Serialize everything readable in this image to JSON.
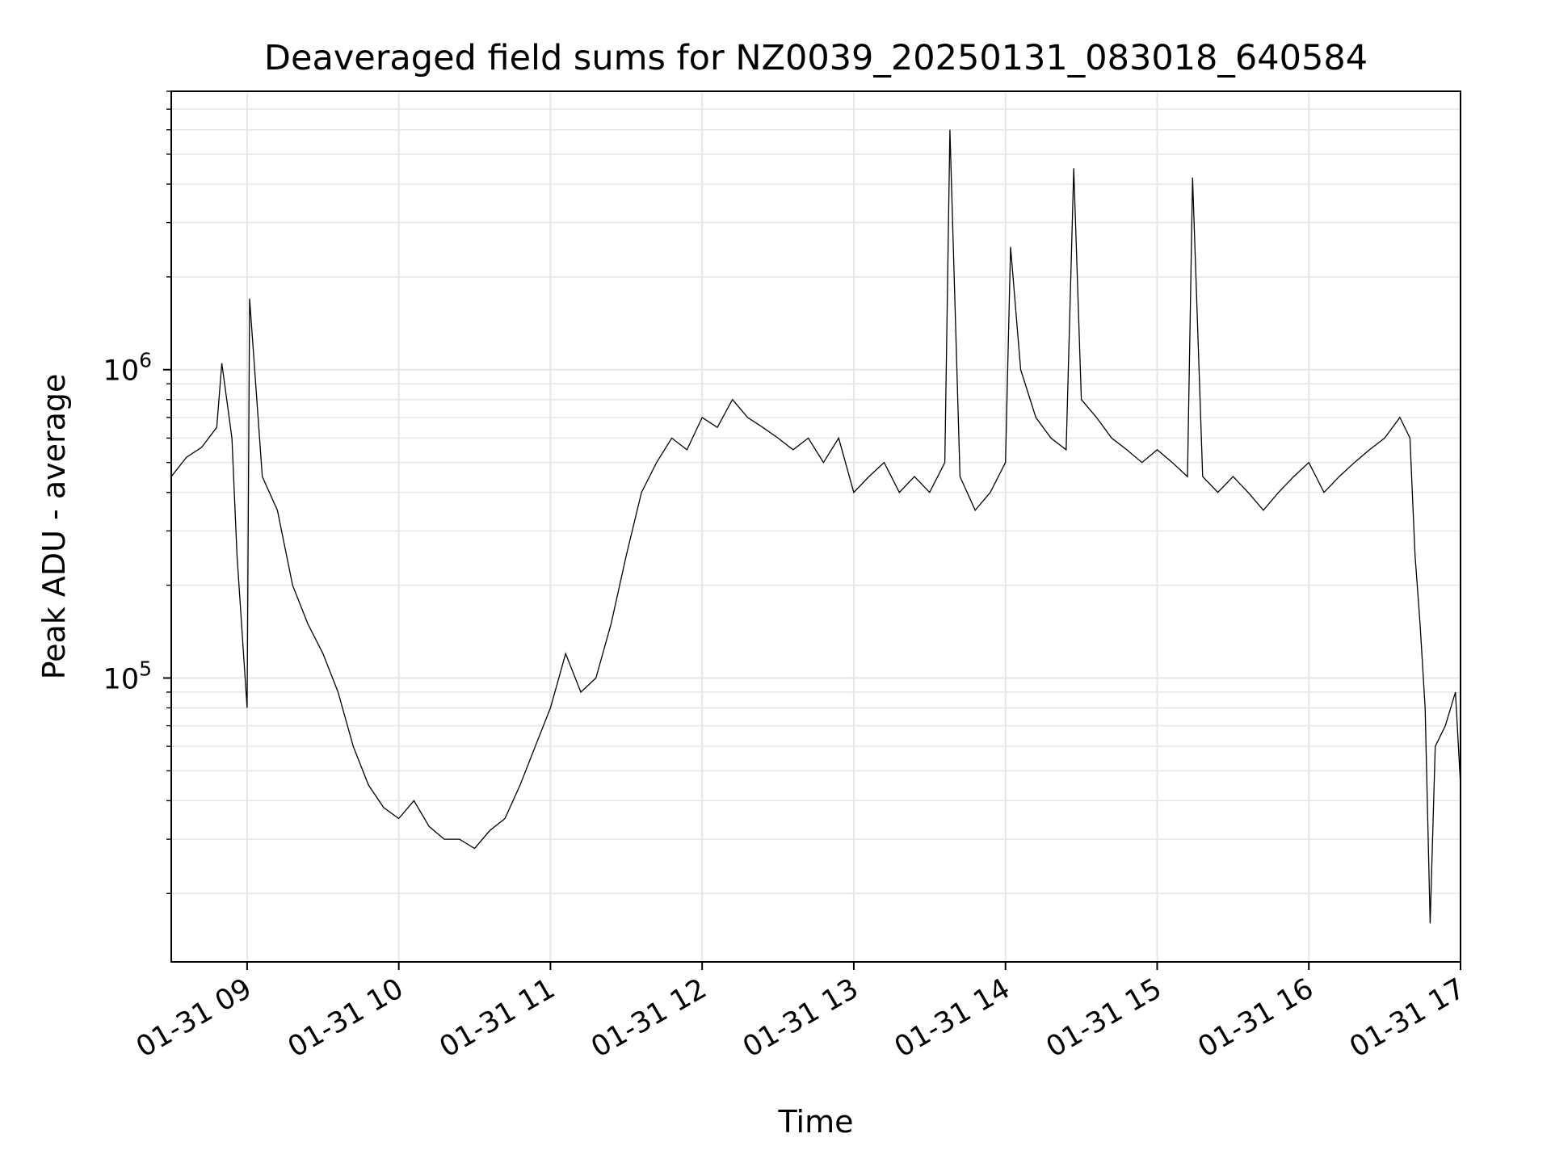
{
  "chart_data": {
    "type": "line",
    "title": "Deaveraged field sums for NZ0039_20250131_083018_640584",
    "xlabel": "Time",
    "ylabel": "Peak ADU - average",
    "y_scale": "log",
    "grid": true,
    "legend": "none",
    "line_color": "#000000",
    "grid_color": "#e6e6e6",
    "xlim": [
      "01-31 08:30",
      "01-31 17:00"
    ],
    "ylim": [
      12000,
      8000000
    ],
    "x_ticks": [
      "01-31 09",
      "01-31 10",
      "01-31 11",
      "01-31 12",
      "01-31 13",
      "01-31 14",
      "01-31 15",
      "01-31 16",
      "01-31 17"
    ],
    "y_ticks": [
      {
        "base": "10",
        "exp": "5",
        "value": 100000
      },
      {
        "base": "10",
        "exp": "6",
        "value": 1000000
      }
    ],
    "series": [
      {
        "points": [
          [
            "01-31 08:30",
            450000
          ],
          [
            "01-31 08:36",
            520000
          ],
          [
            "01-31 08:42",
            560000
          ],
          [
            "01-31 08:48",
            650000
          ],
          [
            "01-31 08:50",
            1050000
          ],
          [
            "01-31 08:54",
            600000
          ],
          [
            "01-31 08:56",
            250000
          ],
          [
            "01-31 09:00",
            80000
          ],
          [
            "01-31 09:01",
            1700000
          ],
          [
            "01-31 09:06",
            450000
          ],
          [
            "01-31 09:12",
            350000
          ],
          [
            "01-31 09:18",
            200000
          ],
          [
            "01-31 09:24",
            150000
          ],
          [
            "01-31 09:30",
            120000
          ],
          [
            "01-31 09:36",
            90000
          ],
          [
            "01-31 09:42",
            60000
          ],
          [
            "01-31 09:48",
            45000
          ],
          [
            "01-31 09:54",
            38000
          ],
          [
            "01-31 10:00",
            35000
          ],
          [
            "01-31 10:06",
            40000
          ],
          [
            "01-31 10:12",
            33000
          ],
          [
            "01-31 10:18",
            30000
          ],
          [
            "01-31 10:24",
            30000
          ],
          [
            "01-31 10:30",
            28000
          ],
          [
            "01-31 10:36",
            32000
          ],
          [
            "01-31 10:42",
            35000
          ],
          [
            "01-31 10:48",
            45000
          ],
          [
            "01-31 10:54",
            60000
          ],
          [
            "01-31 11:00",
            80000
          ],
          [
            "01-31 11:06",
            120000
          ],
          [
            "01-31 11:12",
            90000
          ],
          [
            "01-31 11:18",
            100000
          ],
          [
            "01-31 11:24",
            150000
          ],
          [
            "01-31 11:30",
            250000
          ],
          [
            "01-31 11:36",
            400000
          ],
          [
            "01-31 11:42",
            500000
          ],
          [
            "01-31 11:48",
            600000
          ],
          [
            "01-31 11:54",
            550000
          ],
          [
            "01-31 12:00",
            700000
          ],
          [
            "01-31 12:06",
            650000
          ],
          [
            "01-31 12:12",
            800000
          ],
          [
            "01-31 12:18",
            700000
          ],
          [
            "01-31 12:24",
            650000
          ],
          [
            "01-31 12:30",
            600000
          ],
          [
            "01-31 12:36",
            550000
          ],
          [
            "01-31 12:42",
            600000
          ],
          [
            "01-31 12:48",
            500000
          ],
          [
            "01-31 12:54",
            600000
          ],
          [
            "01-31 13:00",
            400000
          ],
          [
            "01-31 13:06",
            450000
          ],
          [
            "01-31 13:12",
            500000
          ],
          [
            "01-31 13:18",
            400000
          ],
          [
            "01-31 13:24",
            450000
          ],
          [
            "01-31 13:30",
            400000
          ],
          [
            "01-31 13:36",
            500000
          ],
          [
            "01-31 13:38",
            6000000
          ],
          [
            "01-31 13:42",
            450000
          ],
          [
            "01-31 13:48",
            350000
          ],
          [
            "01-31 13:54",
            400000
          ],
          [
            "01-31 14:00",
            500000
          ],
          [
            "01-31 14:02",
            2500000
          ],
          [
            "01-31 14:06",
            1000000
          ],
          [
            "01-31 14:12",
            700000
          ],
          [
            "01-31 14:18",
            600000
          ],
          [
            "01-31 14:24",
            550000
          ],
          [
            "01-31 14:27",
            4500000
          ],
          [
            "01-31 14:30",
            800000
          ],
          [
            "01-31 14:36",
            700000
          ],
          [
            "01-31 14:42",
            600000
          ],
          [
            "01-31 14:48",
            550000
          ],
          [
            "01-31 14:54",
            500000
          ],
          [
            "01-31 15:00",
            550000
          ],
          [
            "01-31 15:06",
            500000
          ],
          [
            "01-31 15:12",
            450000
          ],
          [
            "01-31 15:14",
            4200000
          ],
          [
            "01-31 15:18",
            450000
          ],
          [
            "01-31 15:24",
            400000
          ],
          [
            "01-31 15:30",
            450000
          ],
          [
            "01-31 15:36",
            400000
          ],
          [
            "01-31 15:42",
            350000
          ],
          [
            "01-31 15:48",
            400000
          ],
          [
            "01-31 15:54",
            450000
          ],
          [
            "01-31 16:00",
            500000
          ],
          [
            "01-31 16:06",
            400000
          ],
          [
            "01-31 16:12",
            450000
          ],
          [
            "01-31 16:18",
            500000
          ],
          [
            "01-31 16:24",
            550000
          ],
          [
            "01-31 16:30",
            600000
          ],
          [
            "01-31 16:36",
            700000
          ],
          [
            "01-31 16:40",
            600000
          ],
          [
            "01-31 16:42",
            250000
          ],
          [
            "01-31 16:44",
            150000
          ],
          [
            "01-31 16:46",
            80000
          ],
          [
            "01-31 16:48",
            16000
          ],
          [
            "01-31 16:50",
            60000
          ],
          [
            "01-31 16:54",
            70000
          ],
          [
            "01-31 16:58",
            90000
          ],
          [
            "01-31 17:00",
            45000
          ]
        ]
      }
    ]
  }
}
